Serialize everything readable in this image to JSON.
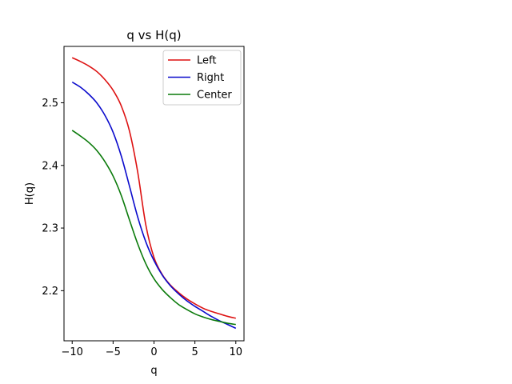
{
  "chart_data": {
    "type": "line",
    "title": "q vs H(q)",
    "xlabel": "q",
    "ylabel": "H(q)",
    "xlim": [
      -11,
      11
    ],
    "ylim": [
      2.12,
      2.59
    ],
    "xticks": [
      -10,
      -5,
      0,
      5,
      10
    ],
    "xtick_labels": [
      "−10",
      "−5",
      "0",
      "5",
      "10"
    ],
    "yticks": [
      2.2,
      2.3,
      2.4,
      2.5
    ],
    "ytick_labels": [
      "2.2",
      "2.3",
      "2.4",
      "2.5"
    ],
    "grid": false,
    "legend_position": "top-right",
    "x": [
      -10,
      -9,
      -8,
      -7,
      -6,
      -5,
      -4,
      -3,
      -2,
      -1,
      0,
      1,
      2,
      3,
      4,
      5,
      6,
      7,
      8,
      9,
      10
    ],
    "series": [
      {
        "name": "Left",
        "color": "#dd1111",
        "values": [
          2.572,
          2.566,
          2.559,
          2.55,
          2.537,
          2.52,
          2.495,
          2.455,
          2.39,
          2.305,
          2.253,
          2.226,
          2.209,
          2.197,
          2.187,
          2.179,
          2.172,
          2.167,
          2.163,
          2.159,
          2.156
        ]
      },
      {
        "name": "Right",
        "color": "#0a0acc",
        "values": [
          2.533,
          2.525,
          2.514,
          2.5,
          2.48,
          2.453,
          2.415,
          2.367,
          2.318,
          2.278,
          2.248,
          2.225,
          2.208,
          2.195,
          2.184,
          2.175,
          2.167,
          2.159,
          2.152,
          2.146,
          2.14
        ]
      },
      {
        "name": "Center",
        "color": "#0a7a0a",
        "values": [
          2.456,
          2.447,
          2.437,
          2.424,
          2.406,
          2.383,
          2.352,
          2.313,
          2.275,
          2.243,
          2.219,
          2.202,
          2.189,
          2.178,
          2.17,
          2.163,
          2.158,
          2.154,
          2.151,
          2.148,
          2.146
        ]
      }
    ]
  }
}
